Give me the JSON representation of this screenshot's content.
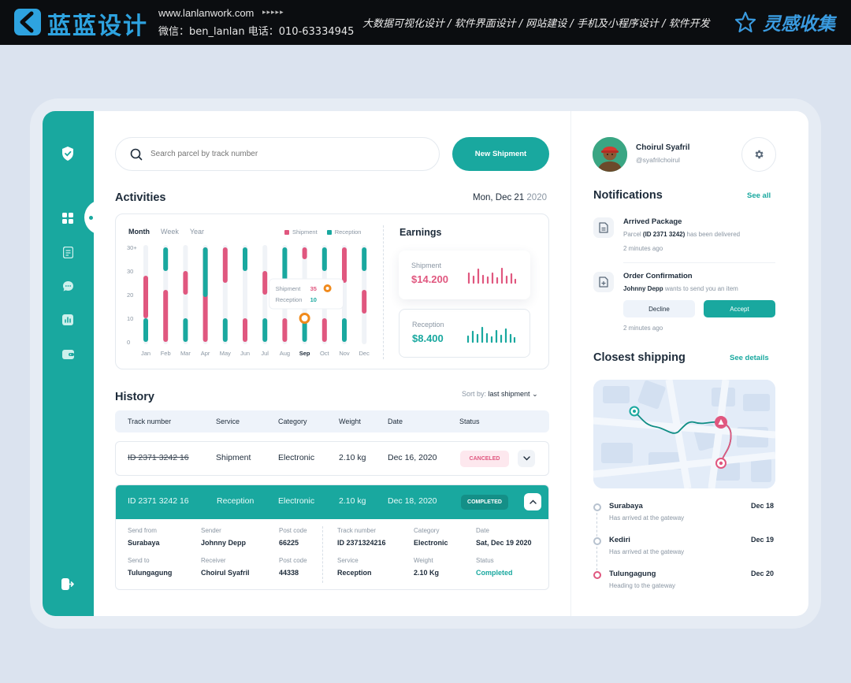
{
  "banner": {
    "logo_text": "蓝蓝设计",
    "url": "www.lanlanwork.com",
    "arrows": "▸▸▸▸▸",
    "contact": "微信：ben_lanlan    电话：010-63334945",
    "services": "大数据可视化设计 / 软件界面设计 / 网站建设 / 手机及小程序设计 / 软件开发",
    "brand2": "灵感收集"
  },
  "search": {
    "placeholder": "Search parcel by track number"
  },
  "new_shipment": "New Shipment",
  "activities": {
    "title": "Activities",
    "date_main": "Mon, Dec 21",
    "date_year": "2020",
    "tabs": [
      "Month",
      "Week",
      "Year"
    ],
    "legend": [
      "Shipment",
      "Reception"
    ]
  },
  "chart_data": {
    "type": "bar",
    "categories": [
      "Jan",
      "Feb",
      "Mar",
      "Apr",
      "May",
      "Jun",
      "Jul",
      "Aug",
      "Sep",
      "Oct",
      "Nov",
      "Dec"
    ],
    "y_ticks": [
      "30+",
      "30",
      "20",
      "10",
      "0"
    ],
    "ylim": [
      0,
      40
    ],
    "selected": "Sep",
    "series": [
      {
        "name": "Shipment",
        "color": "#e0577f",
        "ranges": [
          [
            10,
            28
          ],
          [
            0,
            22
          ],
          [
            20,
            30
          ],
          [
            0,
            40
          ],
          [
            25,
            40
          ],
          [
            0,
            10
          ],
          [
            20,
            30
          ],
          [
            0,
            10
          ],
          [
            35,
            40
          ],
          [
            0,
            10
          ],
          [
            25,
            40
          ],
          [
            12,
            22
          ]
        ]
      },
      {
        "name": "Reception",
        "color": "#19a89f",
        "ranges": [
          [
            0,
            10
          ],
          [
            30,
            40
          ],
          [
            0,
            10
          ],
          [
            19,
            40
          ],
          [
            0,
            10
          ],
          [
            30,
            40
          ],
          [
            0,
            10
          ],
          [
            20,
            40
          ],
          [
            0,
            10
          ],
          [
            30,
            40
          ],
          [
            0,
            10
          ],
          [
            30,
            40
          ]
        ]
      }
    ],
    "tooltip": {
      "shipment_label": "Shipment",
      "shipment_value": "35",
      "reception_label": "Reception",
      "reception_value": "10"
    }
  },
  "earnings": {
    "title": "Earnings",
    "shipment_label": "Shipment",
    "shipment_value": "$14.200",
    "reception_label": "Reception",
    "reception_value": "$8.400"
  },
  "history": {
    "title": "History",
    "sort_label": "Sort by:",
    "sort_value": "last shipment",
    "columns": [
      "Track number",
      "Service",
      "Category",
      "Weight",
      "Date",
      "Status"
    ],
    "row1": {
      "track": "ID 2371 3242 16",
      "service": "Shipment",
      "category": "Electronic",
      "weight": "2.10 kg",
      "date": "Dec 16, 2020",
      "status": "CANCELED"
    },
    "row2": {
      "track": "ID  2371  3242  16",
      "service": "Reception",
      "category": "Electronic",
      "weight": "2.10 kg",
      "date": "Dec 18, 2020",
      "status": "COMPLETED"
    },
    "details": {
      "send_from_l": "Send from",
      "send_from": "Surabaya",
      "sender_l": "Sender",
      "sender": "Johnny Depp",
      "post1_l": "Post code",
      "post1": "66225",
      "track_l": "Track number",
      "track": "ID 2371324216",
      "category_l": "Category",
      "category": "Electronic",
      "date_l": "Date",
      "date": "Sat, Dec 19 2020",
      "send_to_l": "Send to",
      "send_to": "Tulungagung",
      "receiver_l": "Receiver",
      "receiver": "Choirul Syafril",
      "post2_l": "Post code",
      "post2": "44338",
      "service_l": "Service",
      "service": "Reception",
      "weight_l": "Weight",
      "weight": "2.10 Kg",
      "status_l": "Status",
      "status": "Completed"
    }
  },
  "profile": {
    "name": "Choirul Syafril",
    "handle": "@syafrilchoirul"
  },
  "notifications": {
    "title": "Notifications",
    "see_all": "See all",
    "n1_title": "Arrived Package",
    "n1_pre": "Parcel ",
    "n1_bold": "(ID 2371 3242)",
    "n1_post": " has been delivered",
    "n1_time": "2 minutes ago",
    "n2_title": "Order Confirmation",
    "n2_bold": "Johnny Depp",
    "n2_post": " wants to send you an item",
    "decline": "Decline",
    "accept": "Accept",
    "n2_time": "2 minutes ago"
  },
  "closest": {
    "title": "Closest shipping",
    "see_details": "See details",
    "stops": [
      {
        "city": "Surabaya",
        "note": "Has arrived at the gateway",
        "date": "Dec 18"
      },
      {
        "city": "Kediri",
        "note": "Has arrived at the gateway",
        "date": "Dec 19"
      },
      {
        "city": "Tulungagung",
        "note": "Heading to the gateway",
        "date": "Dec 20"
      }
    ]
  }
}
